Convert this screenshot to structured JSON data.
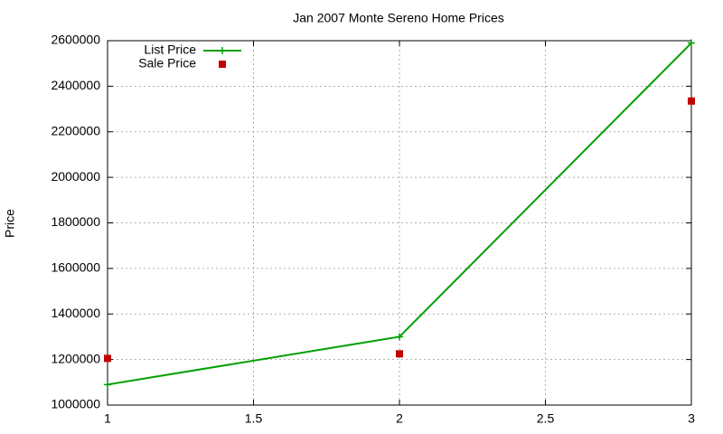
{
  "chart_data": {
    "type": "line",
    "title": "Jan 2007 Monte Sereno Home Prices",
    "y_label": "Price",
    "x": [
      1,
      2,
      3
    ],
    "series": [
      {
        "name": "List Price",
        "color": "#00a000",
        "marker": "plus",
        "line": true,
        "values": [
          1090000,
          1300000,
          2590000
        ]
      },
      {
        "name": "Sale Price",
        "color": "#c00000",
        "marker": "square",
        "line": false,
        "values": [
          1205000,
          1225000,
          2335000
        ]
      }
    ],
    "xlim": [
      1,
      3
    ],
    "xticks": [
      1,
      1.5,
      2,
      2.5,
      3
    ],
    "ylim": [
      1000000,
      2600000
    ],
    "yticks": [
      1000000,
      1200000,
      1400000,
      1600000,
      1800000,
      2000000,
      2200000,
      2400000,
      2600000
    ],
    "grid": true,
    "legend": "top-left"
  }
}
